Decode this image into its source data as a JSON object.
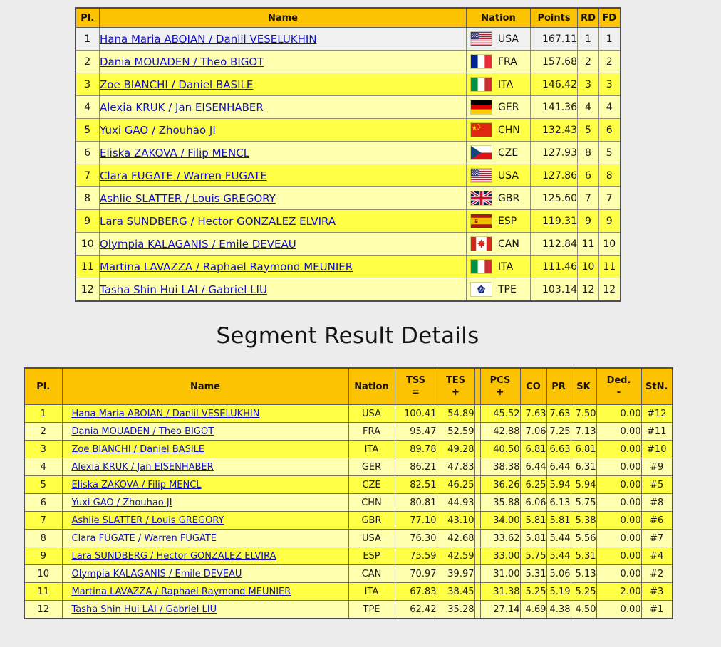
{
  "colors": {
    "header_gold": "#fcc303",
    "row_bright_yellow": "#ffff45",
    "row_pale_yellow": "#ffffb0",
    "row_first_gray": "#f0f0f0",
    "link_blue": "#0f0fc4",
    "page_background": "#ececec"
  },
  "results_table": {
    "headers": {
      "pl": "Pl.",
      "name": "Name",
      "nation": "Nation",
      "points": "Points",
      "rd": "RD",
      "fd": "FD"
    },
    "rows": [
      {
        "pl": "1",
        "name": "Hana Maria ABOIAN / Daniil VESELUKHIN",
        "flag": "USA",
        "nation": "USA",
        "points": "167.11",
        "rd": "1",
        "fd": "1"
      },
      {
        "pl": "2",
        "name": "Dania MOUADEN / Theo BIGOT",
        "flag": "FRA",
        "nation": "FRA",
        "points": "157.68",
        "rd": "2",
        "fd": "2"
      },
      {
        "pl": "3",
        "name": "Zoe BIANCHI / Daniel BASILE",
        "flag": "ITA",
        "nation": "ITA",
        "points": "146.42",
        "rd": "3",
        "fd": "3"
      },
      {
        "pl": "4",
        "name": "Alexia KRUK / Jan EISENHABER",
        "flag": "GER",
        "nation": "GER",
        "points": "141.36",
        "rd": "4",
        "fd": "4"
      },
      {
        "pl": "5",
        "name": "Yuxi GAO / Zhouhao JI",
        "flag": "CHN",
        "nation": "CHN",
        "points": "132.43",
        "rd": "5",
        "fd": "6"
      },
      {
        "pl": "6",
        "name": "Eliska ZAKOVA / Filip MENCL",
        "flag": "CZE",
        "nation": "CZE",
        "points": "127.93",
        "rd": "8",
        "fd": "5"
      },
      {
        "pl": "7",
        "name": "Clara FUGATE / Warren FUGATE",
        "flag": "USA",
        "nation": "USA",
        "points": "127.86",
        "rd": "6",
        "fd": "8"
      },
      {
        "pl": "8",
        "name": "Ashlie SLATTER / Louis GREGORY",
        "flag": "GBR",
        "nation": "GBR",
        "points": "125.60",
        "rd": "7",
        "fd": "7"
      },
      {
        "pl": "9",
        "name": "Lara SUNDBERG / Hector GONZALEZ ELVIRA",
        "flag": "ESP",
        "nation": "ESP",
        "points": "119.31",
        "rd": "9",
        "fd": "9"
      },
      {
        "pl": "10",
        "name": "Olympia KALAGANIS / Emile DEVEAU",
        "flag": "CAN",
        "nation": "CAN",
        "points": "112.84",
        "rd": "11",
        "fd": "10"
      },
      {
        "pl": "11",
        "name": "Martina LAVAZZA / Raphael Raymond MEUNIER",
        "flag": "ITA",
        "nation": "ITA",
        "points": "111.46",
        "rd": "10",
        "fd": "11"
      },
      {
        "pl": "12",
        "name": "Tasha Shin Hui LAI / Gabriel LIU",
        "flag": "TPE",
        "nation": "TPE",
        "points": "103.14",
        "rd": "12",
        "fd": "12"
      }
    ]
  },
  "segment_title": "Segment Result Details",
  "segment_table": {
    "headers": {
      "pl": "Pl.",
      "name": "Name",
      "nation": "Nation",
      "tss": "TSS",
      "tss_sub": "=",
      "tes": "TES",
      "tes_sub": "+",
      "pcs": "PCS",
      "pcs_sub": "+",
      "co": "CO",
      "pr": "PR",
      "sk": "SK",
      "ded": "Ded.",
      "ded_sub": "-",
      "stn": "StN."
    },
    "rows": [
      {
        "pl": "1",
        "name": "Hana Maria ABOIAN / Daniil VESELUKHIN",
        "nation": "USA",
        "tss": "100.41",
        "tes": "54.89",
        "pcs": "45.52",
        "co": "7.63",
        "pr": "7.63",
        "sk": "7.50",
        "ded": "0.00",
        "stn": "#12"
      },
      {
        "pl": "2",
        "name": "Dania MOUADEN / Theo BIGOT",
        "nation": "FRA",
        "tss": "95.47",
        "tes": "52.59",
        "pcs": "42.88",
        "co": "7.06",
        "pr": "7.25",
        "sk": "7.13",
        "ded": "0.00",
        "stn": "#11"
      },
      {
        "pl": "3",
        "name": "Zoe BIANCHI / Daniel BASILE",
        "nation": "ITA",
        "tss": "89.78",
        "tes": "49.28",
        "pcs": "40.50",
        "co": "6.81",
        "pr": "6.63",
        "sk": "6.81",
        "ded": "0.00",
        "stn": "#10"
      },
      {
        "pl": "4",
        "name": "Alexia KRUK / Jan EISENHABER",
        "nation": "GER",
        "tss": "86.21",
        "tes": "47.83",
        "pcs": "38.38",
        "co": "6.44",
        "pr": "6.44",
        "sk": "6.31",
        "ded": "0.00",
        "stn": "#9"
      },
      {
        "pl": "5",
        "name": "Eliska ZAKOVA / Filip MENCL",
        "nation": "CZE",
        "tss": "82.51",
        "tes": "46.25",
        "pcs": "36.26",
        "co": "6.25",
        "pr": "5.94",
        "sk": "5.94",
        "ded": "0.00",
        "stn": "#5"
      },
      {
        "pl": "6",
        "name": "Yuxi GAO / Zhouhao JI",
        "nation": "CHN",
        "tss": "80.81",
        "tes": "44.93",
        "pcs": "35.88",
        "co": "6.06",
        "pr": "6.13",
        "sk": "5.75",
        "ded": "0.00",
        "stn": "#8"
      },
      {
        "pl": "7",
        "name": "Ashlie SLATTER / Louis GREGORY",
        "nation": "GBR",
        "tss": "77.10",
        "tes": "43.10",
        "pcs": "34.00",
        "co": "5.81",
        "pr": "5.81",
        "sk": "5.38",
        "ded": "0.00",
        "stn": "#6"
      },
      {
        "pl": "8",
        "name": "Clara FUGATE / Warren FUGATE",
        "nation": "USA",
        "tss": "76.30",
        "tes": "42.68",
        "pcs": "33.62",
        "co": "5.81",
        "pr": "5.44",
        "sk": "5.56",
        "ded": "0.00",
        "stn": "#7"
      },
      {
        "pl": "9",
        "name": "Lara SUNDBERG / Hector GONZALEZ ELVIRA",
        "nation": "ESP",
        "tss": "75.59",
        "tes": "42.59",
        "pcs": "33.00",
        "co": "5.75",
        "pr": "5.44",
        "sk": "5.31",
        "ded": "0.00",
        "stn": "#4"
      },
      {
        "pl": "10",
        "name": "Olympia KALAGANIS / Emile DEVEAU",
        "nation": "CAN",
        "tss": "70.97",
        "tes": "39.97",
        "pcs": "31.00",
        "co": "5.31",
        "pr": "5.06",
        "sk": "5.13",
        "ded": "0.00",
        "stn": "#2"
      },
      {
        "pl": "11",
        "name": "Martina LAVAZZA / Raphael Raymond MEUNIER",
        "nation": "ITA",
        "tss": "67.83",
        "tes": "38.45",
        "pcs": "31.38",
        "co": "5.25",
        "pr": "5.19",
        "sk": "5.25",
        "ded": "2.00",
        "stn": "#3"
      },
      {
        "pl": "12",
        "name": "Tasha Shin Hui LAI / Gabriel LIU",
        "nation": "TPE",
        "tss": "62.42",
        "tes": "35.28",
        "pcs": "27.14",
        "co": "4.69",
        "pr": "4.38",
        "sk": "4.50",
        "ded": "0.00",
        "stn": "#1"
      }
    ]
  }
}
